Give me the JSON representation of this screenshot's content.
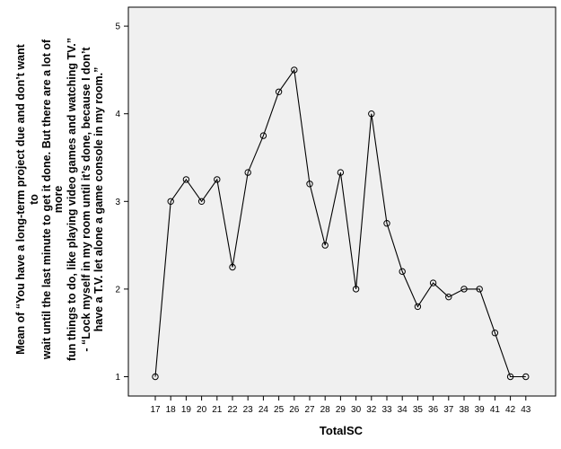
{
  "chart_data": {
    "type": "line",
    "xlabel": "TotalSC",
    "ylabel_lines": [
      "Mean of “You have a long-term project due and don’t want",
      "to",
      "wait until the last minute to get it done. But there are a lot of",
      "more",
      "fun things to do, like playing video games and watching TV.”",
      "- “Lock myself in my room until it’s done, because I don’t",
      "have a T.V. let alone a game console in my room.”"
    ],
    "categories": [
      "17",
      "18",
      "19",
      "20",
      "21",
      "22",
      "23",
      "24",
      "25",
      "26",
      "27",
      "28",
      "29",
      "30",
      "32",
      "33",
      "34",
      "35",
      "36",
      "37",
      "38",
      "39",
      "41",
      "42",
      "43"
    ],
    "values": [
      1.0,
      3.0,
      3.25,
      3.0,
      3.25,
      2.25,
      3.33,
      3.75,
      4.25,
      4.5,
      3.2,
      2.5,
      3.33,
      2.0,
      4.0,
      2.75,
      2.2,
      1.8,
      2.07,
      1.91,
      2.0,
      2.0,
      1.5,
      1.0,
      1.0
    ],
    "yticks": [
      1,
      2,
      3,
      4,
      5
    ],
    "ylim": [
      0.88,
      5.1
    ],
    "marker": "open-circle",
    "grid": false,
    "colors": {
      "plot_background": "#f0f0f0",
      "line": "#000000"
    }
  }
}
